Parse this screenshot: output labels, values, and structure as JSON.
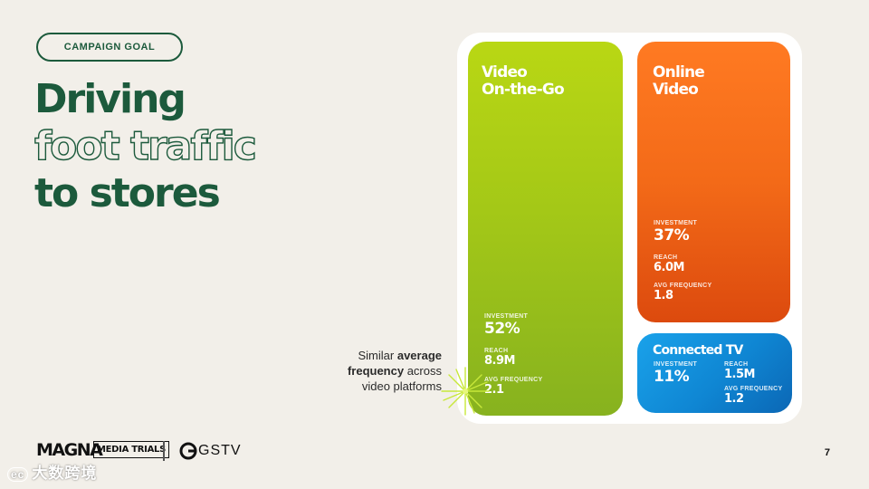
{
  "header": {
    "goal_label": "CAMPAIGN GOAL",
    "headline_line1": "Driving",
    "headline_line2": "foot traffic",
    "headline_line3": "to stores"
  },
  "cards": {
    "video_on_the_go": {
      "title": "Video\nOn-the-Go",
      "investment_label": "INVESTMENT",
      "investment_value": "52%",
      "reach_label": "REACH",
      "reach_value": "8.9M",
      "freq_label": "AVG FREQUENCY",
      "freq_value": "2.1",
      "color": "#a4c817"
    },
    "online_video": {
      "title": "Online\nVideo",
      "investment_label": "INVESTMENT",
      "investment_value": "37%",
      "reach_label": "REACH",
      "reach_value": "6.0M",
      "freq_label": "AVG FREQUENCY",
      "freq_value": "1.8",
      "color": "#f36a18"
    },
    "connected_tv": {
      "title": "Connected TV",
      "investment_label": "INVESTMENT",
      "investment_value": "11%",
      "reach_label": "REACH",
      "reach_value": "1.5M",
      "freq_label": "AVG FREQUENCY",
      "freq_value": "1.2",
      "color": "#0f86d3"
    }
  },
  "annotation": {
    "part1": "Similar ",
    "bold1": "average",
    "bold2": "frequency",
    "part2": " across",
    "line3": "video platforms"
  },
  "footer": {
    "magna": "MAGNA",
    "media_trials": "MEDIA TRIALS",
    "gstv": "GSTV",
    "page_number": "7",
    "watermark": "大数跨境"
  },
  "colors": {
    "brand_green": "#1c5a3c",
    "background": "#f2efe9"
  }
}
